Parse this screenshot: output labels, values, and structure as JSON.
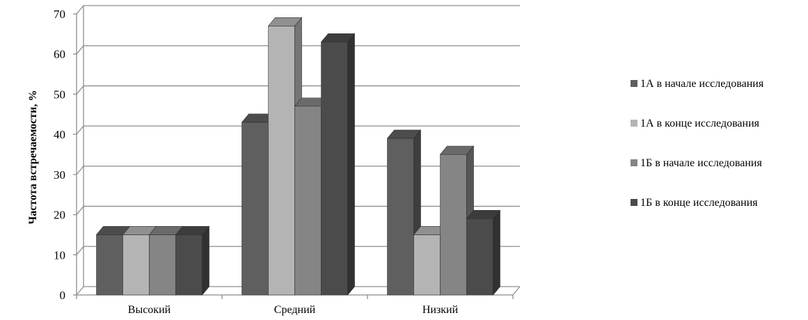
{
  "chart_data": {
    "type": "bar",
    "style": "3d-clustered-column",
    "title": "",
    "xlabel": "",
    "ylabel": "Частота встречаемости, %",
    "ylim": [
      0,
      70
    ],
    "y_ticks": [
      0,
      10,
      20,
      30,
      40,
      50,
      60,
      70
    ],
    "grid": true,
    "legend_position": "right",
    "categories": [
      "Высокий",
      "Средний",
      "Низкий"
    ],
    "series": [
      {
        "name": "1А в начале исследования",
        "color": "#5f5f5f",
        "values": [
          15,
          43,
          39
        ]
      },
      {
        "name": "1А в конце исследования",
        "color": "#b4b4b4",
        "values": [
          15,
          67,
          15
        ]
      },
      {
        "name": "1Б в начале исследования",
        "color": "#858585",
        "values": [
          15,
          47,
          35
        ]
      },
      {
        "name": "1Б в конце исследования",
        "color": "#4b4b4b",
        "values": [
          15,
          63,
          19
        ]
      }
    ]
  }
}
